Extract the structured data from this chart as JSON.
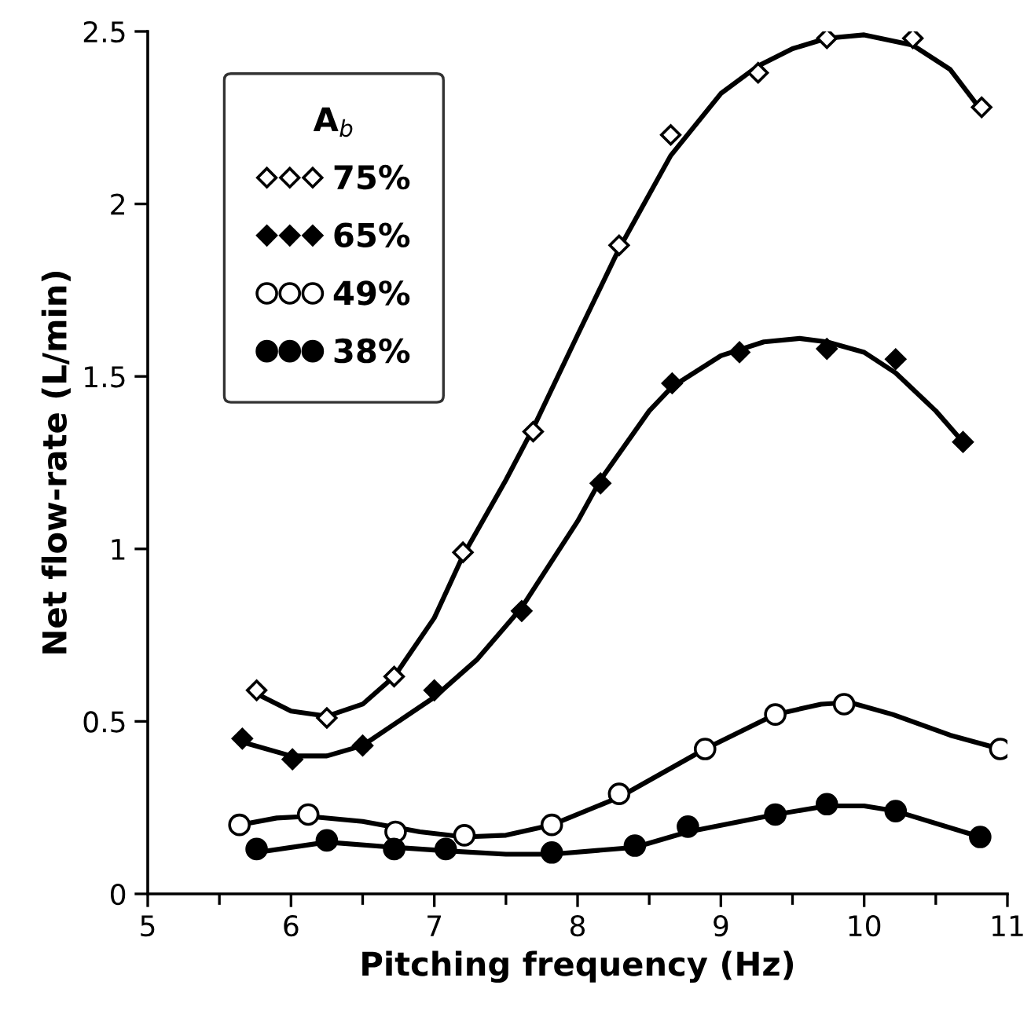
{
  "chart_data": {
    "type": "scatter",
    "xlabel": "Pitching frequency (Hz)",
    "ylabel": "Net flow-rate (L/min)",
    "legend_title": "A$_{b}$",
    "xlim": [
      5,
      11
    ],
    "xticks": [
      5,
      6,
      7,
      8,
      9,
      10,
      11
    ],
    "ylim": [
      0,
      2.5
    ],
    "yticks": [
      0,
      0.5,
      1,
      1.5,
      2,
      2.5
    ],
    "grid": false,
    "legend": "top left",
    "line_style": "solid",
    "series": [
      {
        "type": "line",
        "marker": "none",
        "color": "#000000",
        "x": [
          5.76,
          6.0,
          6.25,
          6.5,
          6.72,
          7.0,
          7.2,
          7.5,
          7.69,
          8.0,
          8.29,
          8.65,
          9.0,
          9.26,
          9.5,
          9.74,
          10.0,
          10.34,
          10.6,
          10.82
        ],
        "values": [
          0.58,
          0.53,
          0.515,
          0.55,
          0.63,
          0.8,
          0.98,
          1.2,
          1.35,
          1.62,
          1.87,
          2.14,
          2.32,
          2.4,
          2.45,
          2.48,
          2.49,
          2.46,
          2.39,
          2.27
        ]
      },
      {
        "name": "75%",
        "color": "#ffffff",
        "marker": "diamond",
        "x": [
          5.76,
          6.25,
          6.72,
          7.2,
          7.69,
          8.29,
          8.65,
          9.26,
          9.74,
          10.34,
          10.82
        ],
        "values": [
          0.59,
          0.51,
          0.63,
          0.99,
          1.34,
          1.88,
          2.2,
          2.38,
          2.48,
          2.48,
          2.28
        ]
      },
      {
        "type": "line",
        "marker": "none",
        "color": "#000000",
        "x": [
          5.66,
          6.0,
          6.25,
          6.5,
          7.0,
          7.3,
          7.61,
          8.0,
          8.16,
          8.5,
          8.66,
          9.0,
          9.3,
          9.55,
          9.74,
          10.0,
          10.22,
          10.5,
          10.69
        ],
        "values": [
          0.44,
          0.4,
          0.4,
          0.43,
          0.57,
          0.68,
          0.83,
          1.08,
          1.2,
          1.4,
          1.47,
          1.56,
          1.6,
          1.61,
          1.6,
          1.57,
          1.51,
          1.4,
          1.31
        ]
      },
      {
        "name": "65%",
        "color": "#000000",
        "marker": "diamond",
        "x": [
          5.66,
          6.01,
          6.5,
          7.0,
          7.61,
          8.16,
          8.66,
          9.13,
          9.74,
          10.22,
          10.69
        ],
        "values": [
          0.45,
          0.39,
          0.43,
          0.59,
          0.82,
          1.19,
          1.48,
          1.57,
          1.58,
          1.55,
          1.31
        ]
      },
      {
        "type": "line",
        "marker": "none",
        "color": "#000000",
        "x": [
          5.64,
          5.9,
          6.12,
          6.5,
          6.9,
          7.21,
          7.5,
          7.82,
          8.29,
          8.89,
          9.38,
          9.7,
          9.9,
          10.2,
          10.6,
          10.95
        ],
        "values": [
          0.2,
          0.22,
          0.225,
          0.21,
          0.18,
          0.165,
          0.17,
          0.2,
          0.28,
          0.42,
          0.52,
          0.55,
          0.555,
          0.52,
          0.46,
          0.42
        ]
      },
      {
        "name": "49%",
        "color": "#ffffff",
        "marker": "circle",
        "x": [
          5.64,
          6.12,
          6.73,
          7.21,
          7.82,
          8.29,
          8.89,
          9.38,
          9.86,
          10.95
        ],
        "values": [
          0.2,
          0.23,
          0.18,
          0.17,
          0.2,
          0.29,
          0.42,
          0.52,
          0.55,
          0.42
        ]
      },
      {
        "type": "line",
        "marker": "none",
        "color": "#000000",
        "x": [
          5.76,
          6.25,
          6.72,
          7.08,
          7.5,
          7.82,
          8.4,
          8.77,
          9.38,
          9.74,
          10.0,
          10.22,
          10.81
        ],
        "values": [
          0.12,
          0.15,
          0.135,
          0.125,
          0.115,
          0.115,
          0.135,
          0.18,
          0.23,
          0.255,
          0.255,
          0.24,
          0.165
        ]
      },
      {
        "name": "38%",
        "color": "#000000",
        "marker": "circle",
        "x": [
          5.76,
          6.25,
          6.72,
          7.08,
          7.82,
          8.4,
          8.77,
          9.38,
          9.74,
          10.22,
          10.81
        ],
        "values": [
          0.13,
          0.155,
          0.13,
          0.13,
          0.12,
          0.14,
          0.195,
          0.23,
          0.26,
          0.24,
          0.165
        ]
      }
    ]
  }
}
